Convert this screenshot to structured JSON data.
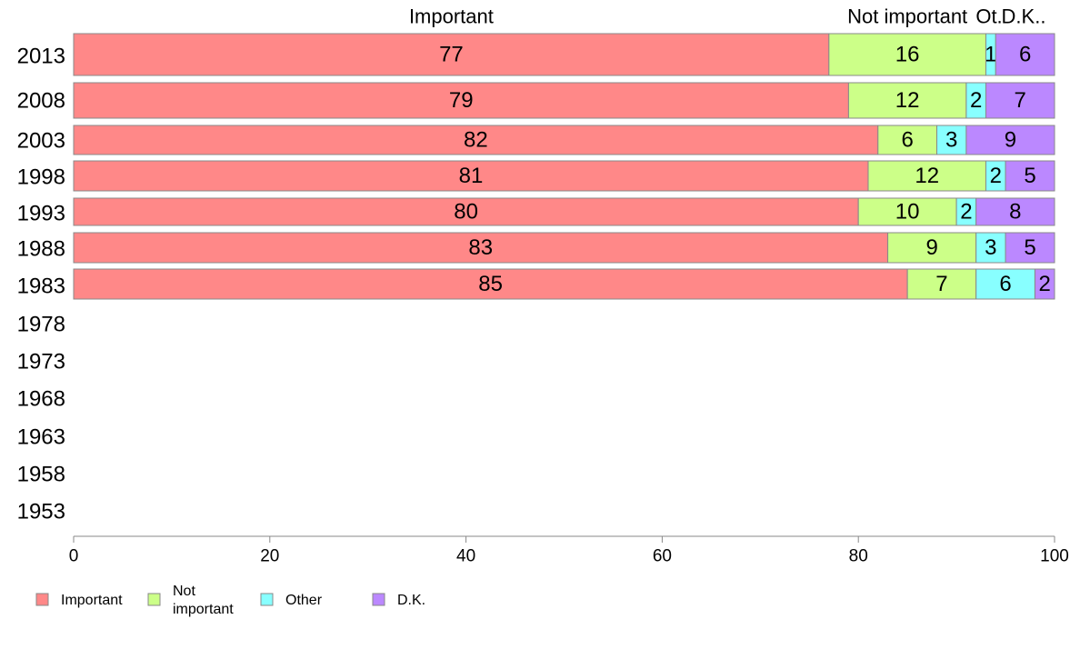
{
  "chart_data": {
    "type": "bar",
    "orientation": "horizontal",
    "stacked": true,
    "categories": [
      "2013",
      "2008",
      "2003",
      "1998",
      "1993",
      "1988",
      "1983",
      "1978",
      "1973",
      "1968",
      "1963",
      "1958",
      "1953"
    ],
    "series": [
      {
        "name": "Important",
        "color": "#ff8888",
        "values": [
          77,
          79,
          82,
          81,
          80,
          83,
          85,
          null,
          null,
          null,
          null,
          null,
          null
        ]
      },
      {
        "name": "Not important",
        "color": "#ccff88",
        "values": [
          16,
          12,
          6,
          12,
          10,
          9,
          7,
          null,
          null,
          null,
          null,
          null,
          null
        ]
      },
      {
        "name": "Other",
        "color": "#88ffff",
        "values": [
          1,
          2,
          3,
          2,
          2,
          3,
          6,
          null,
          null,
          null,
          null,
          null,
          null
        ]
      },
      {
        "name": "D.K.",
        "color": "#bb88ff",
        "values": [
          6,
          7,
          9,
          5,
          8,
          5,
          2,
          null,
          null,
          null,
          null,
          null,
          null
        ]
      }
    ],
    "column_headers": [
      "Important",
      "Not important",
      "Ot.",
      "D.K.."
    ],
    "legend_labels": [
      "Important",
      "Not\nimportant",
      "Other",
      "D.K."
    ],
    "xlim": [
      0,
      100
    ],
    "xticks": [
      0,
      20,
      40,
      60,
      80,
      100
    ],
    "grid": false,
    "legend_position": "bottom-left"
  }
}
